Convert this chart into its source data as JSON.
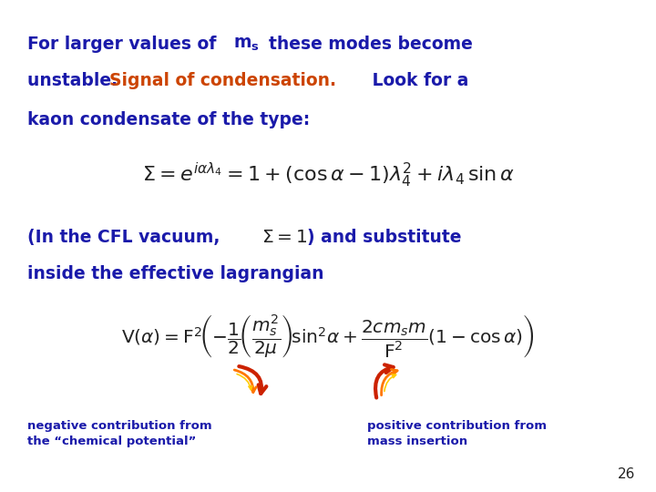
{
  "background_color": "#ffffff",
  "text_color_blue": "#1a1aaa",
  "text_color_orange": "#cc4400",
  "text_color_dark": "#222222",
  "slide_number": "26",
  "caption_left_line1": "negative contribution from",
  "caption_left_line2": "the “chemical potential”",
  "caption_right_line1": "positive contribution from",
  "caption_right_line2": "mass insertion"
}
